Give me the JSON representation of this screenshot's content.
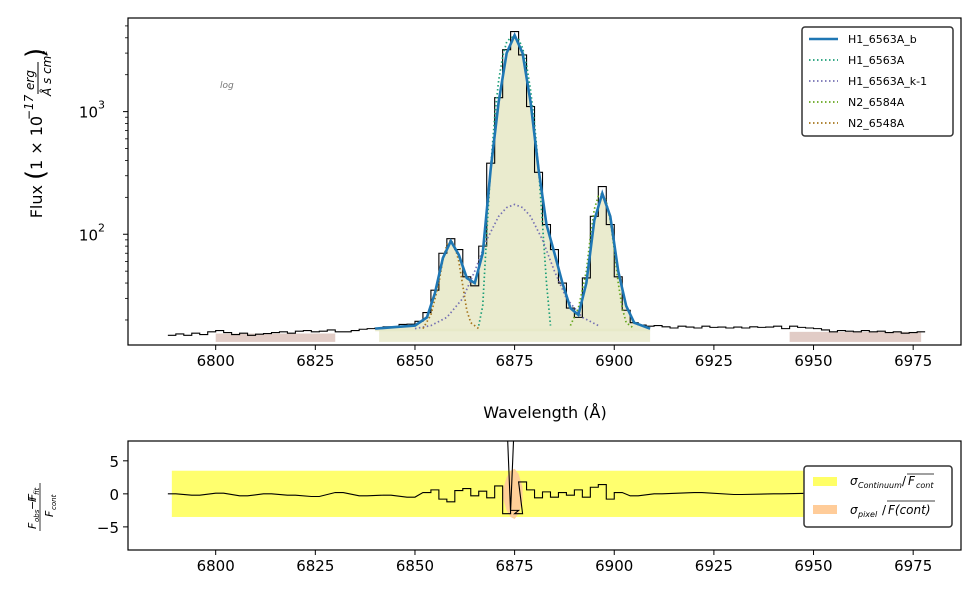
{
  "chart_data": [
    {
      "type": "line",
      "panel": "main",
      "xlabel": "Wavelength (Å)",
      "ylabel": "Flux (1 × 10⁻¹⁷ erg / (Å s cm²))",
      "yscale": "log",
      "xlim": [
        6778,
        6987
      ],
      "ylim": [
        12.5,
        5800
      ],
      "x_ticks": [
        6800,
        6825,
        6850,
        6875,
        6900,
        6925,
        6950,
        6975
      ],
      "x_tick_labels": [
        "6800",
        "6825",
        "6850",
        "6875",
        "6900",
        "6925",
        "6950",
        "6975"
      ],
      "y_tick_labels": [
        {
          "value": 100,
          "base": "10",
          "exp": "2"
        },
        {
          "value": 1000,
          "base": "10",
          "exp": "3"
        }
      ],
      "grid": false,
      "legend_position": "top-right",
      "annotation": "log",
      "continuum_bands": [
        {
          "from": 6800,
          "to": 6830,
          "value": 15.5
        },
        {
          "from": 6944,
          "to": 6977,
          "value": 16
        },
        {
          "from": 6841,
          "to": 6909,
          "value": 17
        }
      ],
      "series": [
        {
          "name": "H1_6563A_b",
          "style": "solid",
          "color": "#1f77b4",
          "x": [
            6840,
            6845,
            6850,
            6853,
            6855,
            6857,
            6859,
            6861,
            6863,
            6865,
            6867,
            6869,
            6871,
            6873,
            6875,
            6877,
            6879,
            6881,
            6883,
            6885,
            6887,
            6889,
            6891,
            6893,
            6895,
            6897,
            6899,
            6901,
            6903,
            6905,
            6909
          ],
          "y": [
            17,
            17.5,
            18,
            21,
            33,
            64,
            88,
            68,
            44,
            40,
            70,
            340,
            1200,
            3000,
            4200,
            3000,
            1200,
            340,
            120,
            70,
            40,
            25,
            22,
            40,
            130,
            215,
            140,
            50,
            26,
            19,
            17
          ]
        },
        {
          "name": "H1_6563A",
          "style": "dotted",
          "color": "#1b9e77",
          "x": [
            6866,
            6867,
            6868,
            6869,
            6870,
            6871,
            6872,
            6873,
            6874,
            6875,
            6876,
            6877,
            6878,
            6879,
            6880,
            6881,
            6882,
            6883,
            6884
          ],
          "y": [
            18,
            26,
            100,
            350,
            900,
            1800,
            2800,
            3700,
            4000,
            4100,
            3900,
            3300,
            2400,
            1500,
            800,
            350,
            120,
            40,
            18
          ]
        },
        {
          "name": "H1_6563A_k-1",
          "style": "dotted",
          "color": "#7570b3",
          "x": [
            6850,
            6854,
            6858,
            6862,
            6865,
            6868,
            6871,
            6873,
            6875,
            6877,
            6879,
            6882,
            6885,
            6888,
            6892,
            6896
          ],
          "y": [
            17,
            18,
            21,
            30,
            50,
            90,
            140,
            165,
            175,
            165,
            140,
            90,
            50,
            30,
            21,
            18
          ]
        },
        {
          "name": "N2_6584A",
          "style": "dotted",
          "color": "#66a61e",
          "x": [
            6889,
            6891,
            6893,
            6894,
            6895,
            6896,
            6897,
            6898,
            6899,
            6900,
            6901,
            6902,
            6903,
            6905
          ],
          "y": [
            18,
            25,
            50,
            95,
            160,
            205,
            215,
            185,
            130,
            75,
            40,
            25,
            19,
            17
          ]
        },
        {
          "name": "N2_6548A",
          "style": "dotted",
          "color": "#a6761d",
          "x": [
            6852,
            6854,
            6856,
            6857,
            6858,
            6859,
            6860,
            6861,
            6862,
            6863,
            6864,
            6866
          ],
          "y": [
            17,
            22,
            40,
            62,
            82,
            90,
            80,
            60,
            38,
            24,
            19,
            17
          ]
        }
      ],
      "observed_spectrum": {
        "name": "observed",
        "color": "#000000",
        "x": [
          6789,
          6791,
          6793,
          6795,
          6797,
          6799,
          6801,
          6803,
          6805,
          6807,
          6809,
          6811,
          6813,
          6815,
          6817,
          6819,
          6821,
          6823,
          6825,
          6827,
          6829,
          6831,
          6833,
          6835,
          6837,
          6839,
          6841,
          6843,
          6845,
          6847,
          6849,
          6851,
          6853,
          6855,
          6857,
          6859,
          6861,
          6863,
          6865,
          6867,
          6869,
          6871,
          6873,
          6875,
          6877,
          6879,
          6881,
          6883,
          6885,
          6887,
          6889,
          6891,
          6893,
          6895,
          6897,
          6899,
          6901,
          6903,
          6905,
          6907,
          6909,
          6911,
          6913,
          6915,
          6917,
          6919,
          6921,
          6923,
          6925,
          6927,
          6929,
          6931,
          6933,
          6935,
          6937,
          6939,
          6941,
          6943,
          6945,
          6947,
          6949,
          6951,
          6953,
          6955,
          6957,
          6959,
          6961,
          6963,
          6965,
          6967,
          6969,
          6971,
          6973,
          6975,
          6977
        ],
        "y": [
          15,
          15.4,
          15,
          15.6,
          15.2,
          16,
          16.4,
          15.8,
          15.2,
          15.6,
          15,
          15.3,
          15.5,
          15.8,
          16,
          15.6,
          16.2,
          16.4,
          16,
          16.2,
          16.6,
          16,
          16,
          16.4,
          16.8,
          17,
          17.2,
          17.6,
          17.5,
          18.4,
          18.5,
          19.5,
          23,
          35,
          70,
          92,
          75,
          45,
          38,
          80,
          380,
          1300,
          3200,
          4500,
          2900,
          1100,
          320,
          120,
          75,
          40,
          25,
          21,
          44,
          140,
          245,
          120,
          45,
          24,
          19,
          18.2,
          17.8,
          18,
          17.6,
          17.2,
          17.8,
          17.5,
          17.2,
          17.8,
          17.4,
          17.5,
          17.2,
          17.5,
          17.2,
          17.6,
          17.4,
          17.5,
          17.8,
          17,
          17.8,
          17.4,
          17.2,
          17,
          16.6,
          16,
          16.4,
          16.2,
          16,
          16.4,
          16,
          16.2,
          15.8,
          16,
          15.6,
          15.8,
          16
        ]
      }
    },
    {
      "type": "line",
      "panel": "residual",
      "ylabel": "(F_obs − F_fit) / F_cont",
      "xlim": [
        6778,
        6987
      ],
      "ylim": [
        -8.5,
        8
      ],
      "y_ticks": [
        -5,
        0,
        5
      ],
      "y_tick_labels": [
        "−5",
        "0",
        "5"
      ],
      "x_ticks": [
        6800,
        6825,
        6850,
        6875,
        6900,
        6925,
        6950,
        6975
      ],
      "x_tick_labels": [
        "6800",
        "6825",
        "6850",
        "6875",
        "6900",
        "6925",
        "6950",
        "6975"
      ],
      "legend_position": "right",
      "bands": [
        {
          "name": "σ_Continuum / F̄_cont",
          "color": "#ffff66",
          "from": 6789,
          "to": 6977,
          "low": -3.5,
          "high": 3.5
        },
        {
          "name": "σ_pixel / F̄(cont)",
          "color": "#ffcc99",
          "x": [
            6872,
            6873,
            6874,
            6875,
            6876,
            6877
          ],
          "half_width": [
            0.5,
            2.5,
            3.5,
            3.8,
            3.0,
            1.0
          ]
        }
      ],
      "residual": {
        "x": [
          6789,
          6795,
          6801,
          6807,
          6813,
          6819,
          6825,
          6831,
          6837,
          6843,
          6849,
          6853,
          6855,
          6857,
          6859,
          6861,
          6863,
          6865,
          6867,
          6869,
          6871,
          6873,
          6874,
          6875,
          6876,
          6877,
          6879,
          6881,
          6883,
          6885,
          6887,
          6889,
          6891,
          6893,
          6895,
          6897,
          6899,
          6901,
          6905,
          6911,
          6921,
          6931,
          6941,
          6951,
          6961,
          6971,
          6977
        ],
        "y": [
          0,
          -0.2,
          0.1,
          -0.3,
          0,
          -0.2,
          -0.4,
          0.2,
          -0.3,
          -0.2,
          -0.5,
          0.2,
          0.6,
          -0.8,
          -1.2,
          0.5,
          0.8,
          -0.3,
          0.4,
          -0.6,
          1.2,
          -3,
          12,
          -2.5,
          -3,
          1.8,
          0.6,
          -0.6,
          0.3,
          -0.5,
          0.2,
          -0.2,
          0.6,
          -0.5,
          1.0,
          1.4,
          -0.8,
          0.2,
          -0.3,
          0,
          0.2,
          -0.1,
          0,
          0.1,
          -0.1,
          0,
          0
        ]
      }
    }
  ],
  "legend_main": [
    {
      "label": "H1_6563A_b",
      "color": "#1f77b4",
      "style": "solid"
    },
    {
      "label": "H1_6563A",
      "color": "#1b9e77",
      "style": "dotted"
    },
    {
      "label": "H1_6563A_k-1",
      "color": "#7570b3",
      "style": "dotted"
    },
    {
      "label": "N2_6584A",
      "color": "#66a61e",
      "style": "dotted"
    },
    {
      "label": "N2_6548A",
      "color": "#a6761d",
      "style": "dotted"
    }
  ],
  "legend_residual": [
    {
      "label_main": "σ",
      "label_sub": "Continuum",
      "label_den": "F",
      "label_den_sub": "cont",
      "color": "#ffff66"
    },
    {
      "label_main": "σ",
      "label_sub": "pixel",
      "label_den": "F(cont)",
      "label_den_sub": "",
      "color": "#ffcc99"
    }
  ]
}
